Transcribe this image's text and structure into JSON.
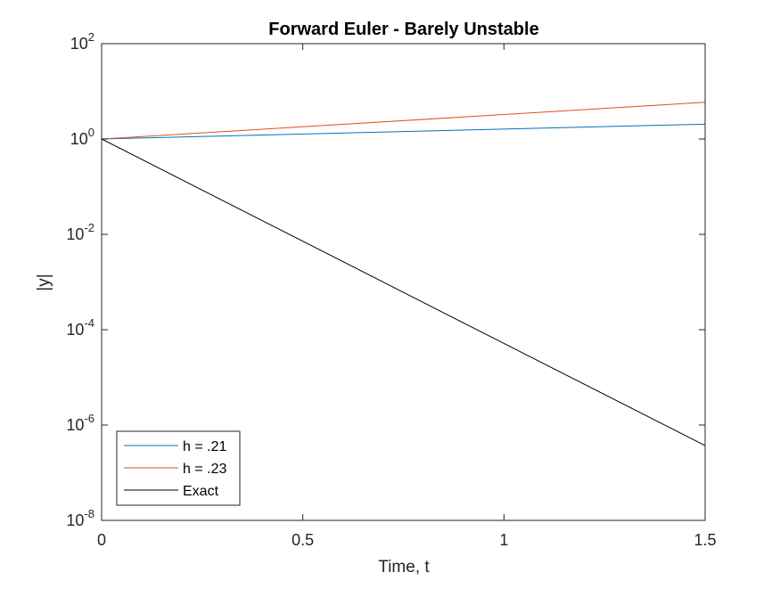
{
  "chart_data": {
    "type": "line",
    "title": "Forward Euler - Barely Unstable",
    "xlabel": "Time, t",
    "ylabel": "|y|",
    "xlim": [
      0,
      1.5
    ],
    "ylim": [
      1e-08,
      100
    ],
    "yscale": "log",
    "grid": false,
    "legend_position": "bottom-left",
    "x_ticks": [
      {
        "value": 0,
        "label": "0"
      },
      {
        "value": 0.5,
        "label": "0.5"
      },
      {
        "value": 1,
        "label": "1"
      },
      {
        "value": 1.5,
        "label": "1.5"
      }
    ],
    "y_ticks": [
      {
        "value": 1e-08,
        "base": "10",
        "exp": "-8"
      },
      {
        "value": 1e-06,
        "base": "10",
        "exp": "-6"
      },
      {
        "value": 0.0001,
        "base": "10",
        "exp": "-4"
      },
      {
        "value": 0.01,
        "base": "10",
        "exp": "-2"
      },
      {
        "value": 1,
        "base": "10",
        "exp": "0"
      },
      {
        "value": 100,
        "base": "10",
        "exp": "2"
      }
    ],
    "series": [
      {
        "name": "h = .21",
        "color": "#0072BD",
        "x": [
          0,
          1.5
        ],
        "y": [
          1.0,
          2.05
        ]
      },
      {
        "name": "h = .23",
        "color": "#D95319",
        "x": [
          0,
          1.5
        ],
        "y": [
          1.0,
          5.9
        ]
      },
      {
        "name": "Exact",
        "color": "#000000",
        "x": [
          0,
          1.5
        ],
        "y": [
          1.0,
          3.7e-07
        ]
      }
    ]
  }
}
